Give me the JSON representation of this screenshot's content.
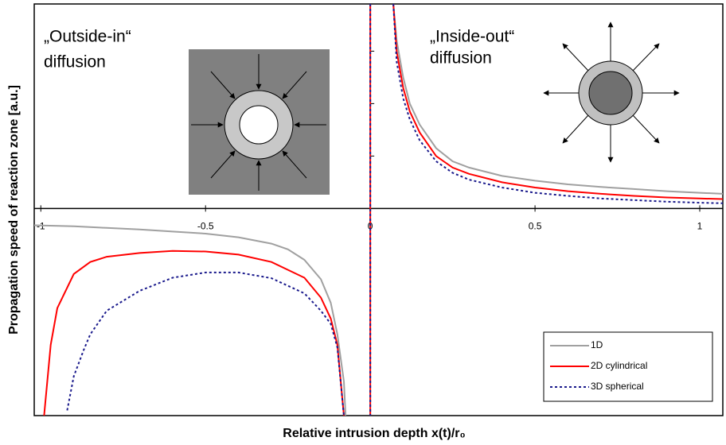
{
  "chart_data": {
    "type": "line",
    "x_label": "Relative intrusion depth x(t)/r₀",
    "y_label": "Propagation speed of reaction zone [a.u.]",
    "annotations": [
      "„Outside-in“",
      "diffusion",
      "„Inside-out“",
      "diffusion"
    ],
    "xlim": [
      -1.02,
      1.07
    ],
    "ylim": [
      -3.95,
      3.9
    ],
    "xticks": [
      -1,
      -0.5,
      0,
      0.5,
      1
    ],
    "yticks": [
      1,
      2,
      3
    ],
    "legend": "lower right",
    "series": [
      {
        "name": "1D",
        "color": "#a0a0a0",
        "style": "solid",
        "x": [
          -1.02,
          -0.9,
          -0.8,
          -0.7,
          -0.6,
          -0.5,
          -0.4,
          -0.3,
          -0.25,
          -0.2,
          -0.15,
          -0.12,
          -0.1,
          -0.08,
          -0.075,
          0,
          0.07,
          0.08,
          0.1,
          0.12,
          0.15,
          0.2,
          0.25,
          0.3,
          0.4,
          0.5,
          0.6,
          0.7,
          0.8,
          0.9,
          1.0,
          1.07
        ],
        "values": [
          -0.32,
          -0.34,
          -0.37,
          -0.4,
          -0.44,
          -0.48,
          -0.55,
          -0.67,
          -0.78,
          -0.98,
          -1.35,
          -1.8,
          -2.4,
          -3.3,
          -3.95,
          null,
          3.9,
          3.2,
          2.5,
          2.0,
          1.6,
          1.15,
          0.9,
          0.78,
          0.62,
          0.53,
          0.46,
          0.41,
          0.37,
          0.33,
          0.3,
          0.28
        ]
      },
      {
        "name": "2D cylindrical",
        "color": "#ff0000",
        "style": "solid",
        "x": [
          -0.99,
          -0.97,
          -0.95,
          -0.9,
          -0.85,
          -0.8,
          -0.7,
          -0.6,
          -0.5,
          -0.4,
          -0.3,
          -0.2,
          -0.15,
          -0.12,
          -0.1,
          -0.08,
          0,
          0.07,
          0.08,
          0.1,
          0.12,
          0.15,
          0.2,
          0.25,
          0.3,
          0.4,
          0.5,
          0.6,
          0.7,
          0.8,
          0.9,
          1.0,
          1.07
        ],
        "values": [
          -3.95,
          -2.6,
          -1.9,
          -1.25,
          -1.02,
          -0.92,
          -0.85,
          -0.81,
          -0.82,
          -0.88,
          -1.02,
          -1.32,
          -1.7,
          -2.1,
          -2.6,
          -3.95,
          null,
          3.9,
          3.0,
          2.3,
          1.85,
          1.45,
          1.0,
          0.78,
          0.66,
          0.5,
          0.4,
          0.33,
          0.28,
          0.24,
          0.21,
          0.19,
          0.18
        ]
      },
      {
        "name": "3D spherical",
        "color": "#1a1a8c",
        "style": "dotted",
        "x": [
          -0.92,
          -0.9,
          -0.87,
          -0.85,
          -0.8,
          -0.7,
          -0.6,
          -0.5,
          -0.4,
          -0.3,
          -0.2,
          -0.15,
          -0.12,
          -0.1,
          -0.08,
          0,
          0.07,
          0.08,
          0.1,
          0.12,
          0.15,
          0.2,
          0.25,
          0.3,
          0.4,
          0.5,
          0.6,
          0.7,
          0.8,
          0.9,
          1.0,
          1.07
        ],
        "values": [
          -3.85,
          -3.2,
          -2.7,
          -2.4,
          -1.95,
          -1.57,
          -1.32,
          -1.22,
          -1.22,
          -1.33,
          -1.62,
          -1.95,
          -2.2,
          -2.65,
          -3.95,
          null,
          3.9,
          2.8,
          2.1,
          1.7,
          1.3,
          0.9,
          0.68,
          0.55,
          0.4,
          0.3,
          0.24,
          0.19,
          0.16,
          0.13,
          0.11,
          0.1
        ]
      }
    ]
  }
}
